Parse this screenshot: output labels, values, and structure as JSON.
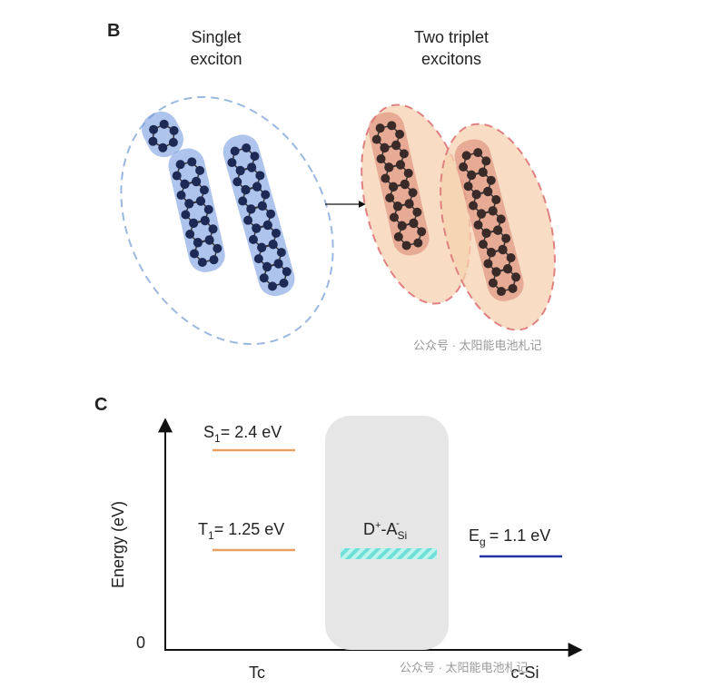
{
  "panel_b": {
    "label": "B",
    "singlet": [
      "Singlet",
      "exciton"
    ],
    "triplet": [
      "Two triplet",
      "excitons"
    ],
    "watermark": "公众号 · 太阳能电池札记"
  },
  "panel_c": {
    "label": "C",
    "y_axis_label": "Energy (eV)",
    "origin_label": "0",
    "x_left": "Tc",
    "x_right": "c-Si",
    "s1": {
      "symbol": "S",
      "sub": "1",
      "text": "= 2.4 eV"
    },
    "t1": {
      "symbol": "T",
      "sub": "1",
      "text": "= 1.25 eV"
    },
    "ct": {
      "d": "D",
      "sup1": "+",
      "a": "-A",
      "sub": "Si",
      "sup2": "-"
    },
    "eg": {
      "symbol": "E",
      "sub": "g",
      "text": "= 1.1 eV"
    },
    "watermark": "公众号 · 太阳能电池札记"
  }
}
